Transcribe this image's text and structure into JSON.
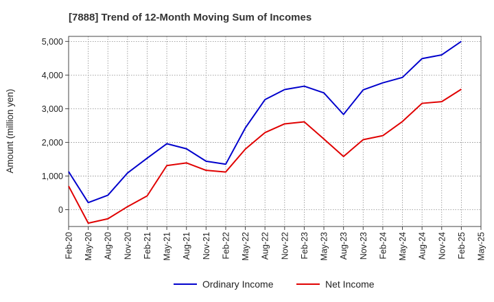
{
  "chart_data": {
    "type": "line",
    "title": "[7888]  Trend of 12-Month Moving Sum of Incomes",
    "xlabel": "",
    "ylabel": "Amount (million yen)",
    "ylim": [
      -500,
      5150
    ],
    "yticks": [
      0,
      1000,
      2000,
      3000,
      4000,
      5000
    ],
    "ytick_labels": [
      "0",
      "1,000",
      "2,000",
      "3,000",
      "4,000",
      "5,000"
    ],
    "categories": [
      "Feb-20",
      "May-20",
      "Aug-20",
      "Nov-20",
      "Feb-21",
      "May-21",
      "Aug-21",
      "Nov-21",
      "Feb-22",
      "May-22",
      "Aug-22",
      "Nov-22",
      "Feb-23",
      "May-23",
      "Aug-23",
      "Nov-23",
      "Feb-24",
      "May-24",
      "Aug-24",
      "Nov-24",
      "Feb-25",
      "May-25"
    ],
    "grid": true,
    "legend_position": "bottom",
    "series": [
      {
        "name": "Ordinary Income",
        "color": "#0000cc",
        "values": [
          1130,
          210,
          430,
          1090,
          1530,
          1960,
          1810,
          1440,
          1350,
          2430,
          3270,
          3570,
          3670,
          3470,
          2830,
          3560,
          3770,
          3930,
          4490,
          4600,
          5000,
          null
        ]
      },
      {
        "name": "Net Income",
        "color": "#e00000",
        "values": [
          700,
          -400,
          -270,
          90,
          410,
          1310,
          1390,
          1170,
          1120,
          1800,
          2290,
          2550,
          2610,
          2100,
          1580,
          2080,
          2200,
          2620,
          3160,
          3210,
          3580,
          null
        ]
      }
    ]
  }
}
